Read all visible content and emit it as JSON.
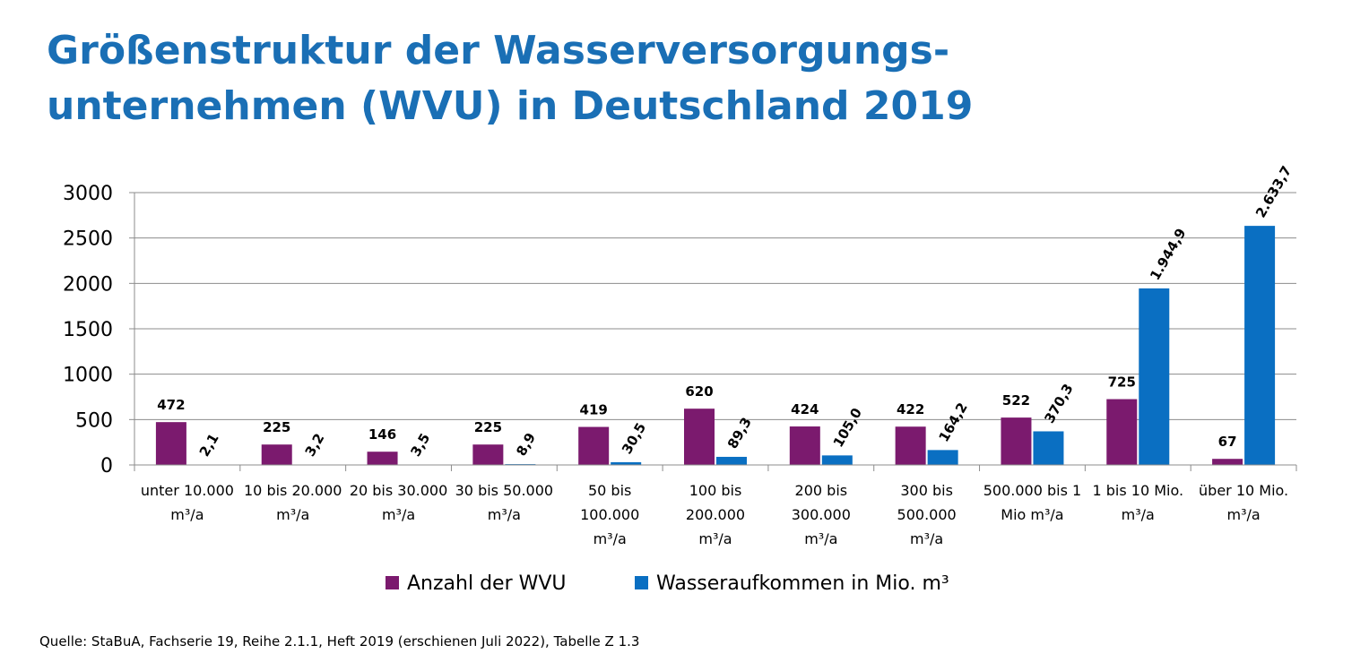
{
  "title_lines": [
    "Größenstruktur der Wasserversorgungs-",
    "unternehmen (WVU) in Deutschland 2019"
  ],
  "source": "Quelle: StaBuA, Fachserie 19, Reihe 2.1.1, Heft 2019 (erschienen Juli 2022), Tabelle Z 1.3",
  "chart_data": {
    "type": "bar",
    "title": "Größenstruktur der Wasserversorgungsunternehmen (WVU) in Deutschland 2019",
    "xlabel": "",
    "ylabel": "",
    "ylim": [
      0,
      3000
    ],
    "yticks": [
      "0",
      "500",
      "1000",
      "1500",
      "2000",
      "2500",
      "3000"
    ],
    "ytick_values": [
      0,
      500,
      1000,
      1500,
      2000,
      2500,
      3000
    ],
    "grid": true,
    "legend_position": "bottom",
    "categories": [
      [
        "unter 10.000",
        "m³/a"
      ],
      [
        "10 bis 20.000",
        "m³/a"
      ],
      [
        "20 bis 30.000",
        "m³/a"
      ],
      [
        "30 bis 50.000",
        "m³/a"
      ],
      [
        "50 bis",
        "100.000",
        "m³/a"
      ],
      [
        "100 bis",
        "200.000",
        "m³/a"
      ],
      [
        "200 bis",
        "300.000",
        "m³/a"
      ],
      [
        "300 bis",
        "500.000",
        "m³/a"
      ],
      [
        "500.000 bis 1",
        "Mio m³/a"
      ],
      [
        "1 bis 10 Mio.",
        "m³/a"
      ],
      [
        "über 10 Mio.",
        "m³/a"
      ]
    ],
    "series": [
      {
        "name": "Anzahl der WVU",
        "color": "#7b1a6e",
        "values": [
          472,
          225,
          146,
          225,
          419,
          620,
          424,
          422,
          522,
          725,
          67
        ],
        "labels": [
          "472",
          "225",
          "146",
          "225",
          "419",
          "620",
          "424",
          "422",
          "522",
          "725",
          "67"
        ]
      },
      {
        "name": "Wasseraufkommen in Mio. m³",
        "color": "#0a6fc2",
        "values": [
          2.1,
          3.2,
          3.5,
          8.9,
          30.5,
          89.3,
          105.0,
          164.2,
          370.3,
          1944.9,
          2633.7
        ],
        "labels": [
          "2,1",
          "3,2",
          "3,5",
          "8,9",
          "30,5",
          "89,3",
          "105,0",
          "164,2",
          "370,3",
          "1.944,9",
          "2.633,7"
        ]
      }
    ]
  }
}
